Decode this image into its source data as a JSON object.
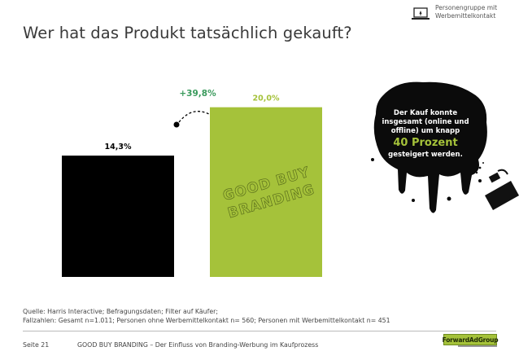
{
  "header": {
    "legend_line1": "Personengruppe mit",
    "legend_line2": "Werbemittelkontakt",
    "title": "Wer hat das Produkt tatsächlich gekauft?"
  },
  "chart_data": {
    "type": "bar",
    "categories": [
      "Personen ohne Werbemittelkontakt",
      "Personen mit Werbemittelkontakt"
    ],
    "values": [
      14.3,
      20.0
    ],
    "value_labels": [
      "14,3%",
      "20,0%"
    ],
    "bar_colors": [
      "#000000",
      "#a5c23a"
    ],
    "increase_label": "+39,8%",
    "increase_color": "#3a9a5c",
    "ylim": [
      0,
      24
    ],
    "stamp_line1": "GOOD BUY",
    "stamp_line2": "BRANDING"
  },
  "callout": {
    "line1": "Der Kauf konnte",
    "line2": "insgesamt (online und",
    "line3": "offline) um knapp",
    "highlight": "40 Prozent",
    "line4": "gesteigert werden."
  },
  "footer": {
    "source_line1": "Quelle: Harris Interactive; Befragungsdaten; Filter auf Käufer;",
    "source_line2": "Fallzahlen: Gesamt n=1.011; Personen ohne Werbemittelkontakt n= 560; Personen mit Werbemittelkontakt  n= 451",
    "page_number": "Seite 21",
    "footer_text": "GOOD BUY BRANDING – Der Einfluss von Branding-Werbung im Kaufprozess",
    "logo_text": "ForwardAdGroup"
  },
  "colors": {
    "accent_green": "#a5c23a",
    "dark": "#000000",
    "increase_green": "#3a9a5c"
  },
  "icons": {
    "legend": "laptop-icon",
    "callout": "spray-can-icon"
  }
}
